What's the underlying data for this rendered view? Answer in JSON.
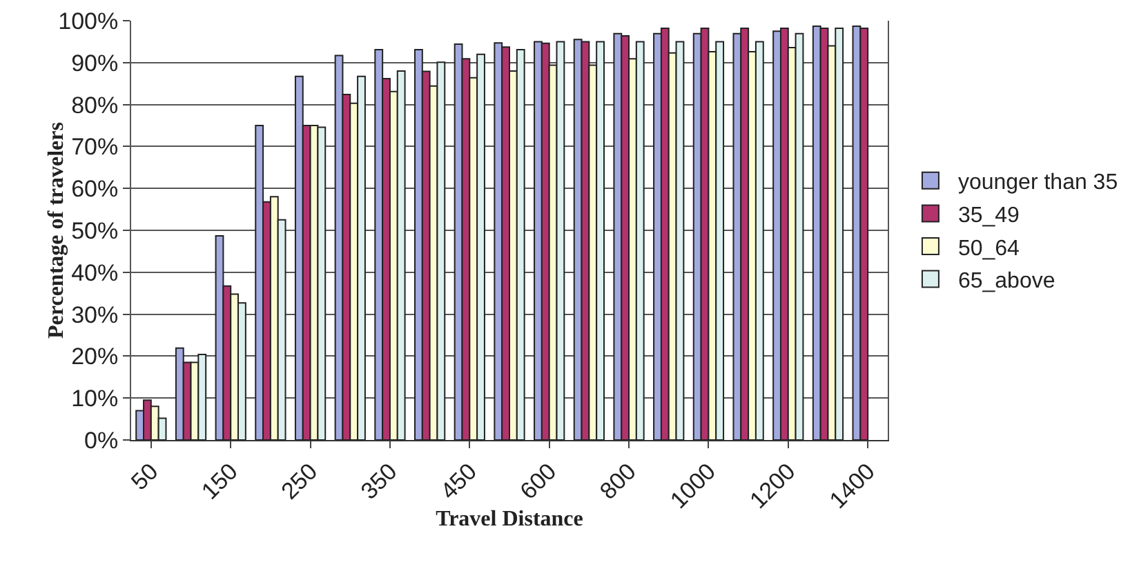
{
  "chart_data": {
    "type": "bar",
    "xlabel": "Travel Distance",
    "ylabel": "Percentage of travelers",
    "categories": [
      "50",
      null,
      "150",
      null,
      "250",
      null,
      "350",
      null,
      "450",
      null,
      "600",
      null,
      "800",
      null,
      "1000",
      null,
      "1200",
      null,
      "1400"
    ],
    "series": [
      {
        "name": "younger than 35",
        "color": "#a3aadf",
        "values": [
          7,
          21.9,
          48.7,
          75,
          86.7,
          91.7,
          93.1,
          93.1,
          94.4,
          94.7,
          95,
          95.5,
          96.9,
          96.9,
          96.9,
          96.9,
          97.5,
          98.7,
          98.7
        ]
      },
      {
        "name": "35_49",
        "color": "#b3336c",
        "values": [
          9.5,
          18.5,
          36.7,
          56.8,
          75,
          82.4,
          86.2,
          87.9,
          90.9,
          93.7,
          94.6,
          95,
          96.4,
          98.2,
          98.2,
          98.2,
          98.2,
          98.2,
          98.2
        ]
      },
      {
        "name": "50_64",
        "color": "#fdfbd0",
        "values": [
          8,
          18.5,
          34.8,
          58,
          75,
          80.3,
          83.1,
          84.4,
          86.4,
          88,
          89.4,
          89.4,
          90.9,
          92.3,
          92.6,
          92.6,
          93.6,
          94,
          null
        ]
      },
      {
        "name": "65_above",
        "color": "#dcf1ef",
        "values": [
          5.2,
          20.4,
          32.7,
          52.5,
          74.6,
          86.7,
          88,
          90.1,
          92,
          93.1,
          95,
          95,
          95,
          95,
          95,
          95,
          96.9,
          98.2,
          null
        ]
      }
    ],
    "ylim": [
      0,
      100
    ],
    "yticks": [
      {
        "value": 0,
        "label": "0%"
      },
      {
        "value": 10,
        "label": "10%"
      },
      {
        "value": 20,
        "label": "20%"
      },
      {
        "value": 30,
        "label": "30%"
      },
      {
        "value": 40,
        "label": "40%"
      },
      {
        "value": 50,
        "label": "50%"
      },
      {
        "value": 60,
        "label": "60%"
      },
      {
        "value": 70,
        "label": "70%"
      },
      {
        "value": 80,
        "label": "80%"
      },
      {
        "value": 90,
        "label": "90%"
      },
      {
        "value": 100,
        "label": "100%"
      }
    ],
    "grid": "y",
    "legend": "right"
  }
}
